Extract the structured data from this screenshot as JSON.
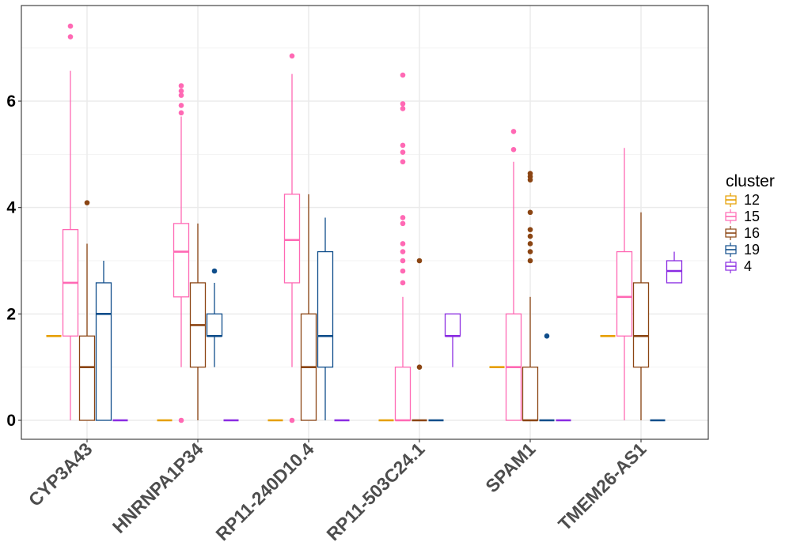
{
  "chart_data": {
    "type": "boxplot",
    "title": "",
    "xlabel": "",
    "ylabel": "",
    "ylim": [
      -0.35,
      7.6
    ],
    "yticks": [
      "0",
      "2",
      "4",
      "6"
    ],
    "grid": true,
    "legend": {
      "title": "cluster",
      "placement": "right"
    },
    "categories": [
      "CYP3A43",
      "HNRNPA1P34",
      "RP11-240D10.4",
      "RP11-503C24.1",
      "SPAM1",
      "TMEM26-AS1"
    ],
    "clusters": [
      {
        "name": "12",
        "color": "#E69F00"
      },
      {
        "name": "15",
        "color": "#FF69B4"
      },
      {
        "name": "16",
        "color": "#8B4513"
      },
      {
        "name": "19",
        "color": "#104E8B"
      },
      {
        "name": "4",
        "color": "#8A2BE2"
      }
    ],
    "boxes": {
      "CYP3A43": {
        "12": {
          "low": 1.585,
          "q1": 1.585,
          "median": 1.585,
          "q3": 1.585,
          "high": 1.585,
          "outliers": []
        },
        "15": {
          "low": 0,
          "q1": 1.585,
          "median": 2.585,
          "q3": 3.585,
          "high": 6.57,
          "outliers": [
            7.21,
            7.41
          ]
        },
        "16": {
          "low": 0,
          "q1": 0,
          "median": 1.0,
          "q3": 1.585,
          "high": 3.32,
          "outliers": [
            4.09
          ]
        },
        "19": {
          "low": 0,
          "q1": 0,
          "median": 2.0,
          "q3": 2.585,
          "high": 3.0,
          "outliers": []
        },
        "4": {
          "low": 0,
          "q1": 0,
          "median": 0,
          "q3": 0,
          "high": 0,
          "outliers": []
        }
      },
      "HNRNPA1P34": {
        "12": {
          "low": 0,
          "q1": 0,
          "median": 0,
          "q3": 0,
          "high": 0,
          "outliers": []
        },
        "15": {
          "low": 1.0,
          "q1": 2.32,
          "median": 3.17,
          "q3": 3.7,
          "high": 5.71,
          "outliers": [
            0,
            5.78,
            5.92,
            6.11,
            6.19,
            6.29
          ]
        },
        "16": {
          "low": 0,
          "q1": 1.0,
          "median": 1.79,
          "q3": 2.585,
          "high": 3.7,
          "outliers": []
        },
        "19": {
          "low": 1.0,
          "q1": 1.585,
          "median": 1.585,
          "q3": 2.0,
          "high": 2.585,
          "outliers": [
            2.807
          ]
        },
        "4": {
          "low": 0,
          "q1": 0,
          "median": 0,
          "q3": 0,
          "high": 0,
          "outliers": []
        }
      },
      "RP11-240D10.4": {
        "12": {
          "low": 0,
          "q1": 0,
          "median": 0,
          "q3": 0,
          "high": 0,
          "outliers": []
        },
        "15": {
          "low": 1.0,
          "q1": 2.585,
          "median": 3.39,
          "q3": 4.25,
          "high": 6.51,
          "outliers": [
            0,
            6.85
          ]
        },
        "16": {
          "low": 0,
          "q1": 0,
          "median": 1.0,
          "q3": 2.0,
          "high": 4.25,
          "outliers": []
        },
        "19": {
          "low": 0,
          "q1": 1.0,
          "median": 1.585,
          "q3": 3.17,
          "high": 3.81,
          "outliers": []
        },
        "4": {
          "low": 0,
          "q1": 0,
          "median": 0,
          "q3": 0,
          "high": 0,
          "outliers": []
        }
      },
      "RP11-503C24.1": {
        "12": {
          "low": 0,
          "q1": 0,
          "median": 0,
          "q3": 0,
          "high": 0,
          "outliers": []
        },
        "15": {
          "low": 0,
          "q1": 0,
          "median": 0,
          "q3": 1.0,
          "high": 2.32,
          "outliers": [
            2.585,
            2.807,
            3.0,
            3.17,
            3.32,
            3.7,
            3.81,
            4.86,
            5.04,
            5.17,
            5.86,
            5.95,
            6.49
          ]
        },
        "16": {
          "low": 0,
          "q1": 0,
          "median": 0,
          "q3": 0,
          "high": 0,
          "outliers": [
            1.0,
            3.0
          ]
        },
        "19": {
          "low": 0,
          "q1": 0,
          "median": 0,
          "q3": 0,
          "high": 0,
          "outliers": []
        },
        "4": {
          "low": 1.0,
          "q1": 1.585,
          "median": 1.585,
          "q3": 2.0,
          "high": 2.0,
          "outliers": []
        }
      },
      "SPAM1": {
        "12": {
          "low": 1.0,
          "q1": 1.0,
          "median": 1.0,
          "q3": 1.0,
          "high": 1.0,
          "outliers": []
        },
        "15": {
          "low": 0,
          "q1": 0,
          "median": 1.0,
          "q3": 2.0,
          "high": 4.86,
          "outliers": [
            5.09,
            5.43
          ]
        },
        "16": {
          "low": 0,
          "q1": 0,
          "median": 0,
          "q3": 1.0,
          "high": 2.32,
          "outliers": [
            3.0,
            3.17,
            3.32,
            3.46,
            3.585,
            3.91,
            4.52,
            4.58,
            4.64
          ]
        },
        "19": {
          "low": 0,
          "q1": 0,
          "median": 0,
          "q3": 0,
          "high": 0,
          "outliers": [
            1.585
          ]
        },
        "4": {
          "low": 0,
          "q1": 0,
          "median": 0,
          "q3": 0,
          "high": 0,
          "outliers": []
        }
      },
      "TMEM26-AS1": {
        "12": {
          "low": 1.585,
          "q1": 1.585,
          "median": 1.585,
          "q3": 1.585,
          "high": 1.585,
          "outliers": []
        },
        "15": {
          "low": 0,
          "q1": 1.585,
          "median": 2.32,
          "q3": 3.17,
          "high": 5.12,
          "outliers": []
        },
        "16": {
          "low": 0,
          "q1": 1.0,
          "median": 1.585,
          "q3": 2.585,
          "high": 3.91,
          "outliers": []
        },
        "19": {
          "low": 0,
          "q1": 0,
          "median": 0,
          "q3": 0,
          "high": 0,
          "outliers": []
        },
        "4": {
          "low": 2.585,
          "q1": 2.585,
          "median": 2.807,
          "q3": 3.0,
          "high": 3.17,
          "outliers": []
        }
      }
    }
  }
}
